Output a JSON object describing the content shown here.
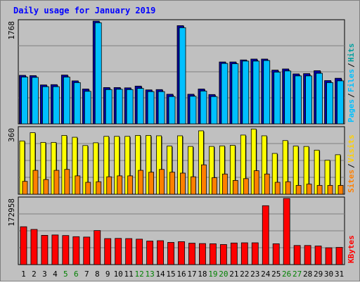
{
  "chart_data": {
    "type": "bar",
    "title": "Daily usage for January 2019",
    "categories": [
      "1",
      "2",
      "3",
      "4",
      "5",
      "6",
      "7",
      "8",
      "9",
      "10",
      "11",
      "12",
      "13",
      "14",
      "15",
      "16",
      "17",
      "18",
      "19",
      "20",
      "21",
      "22",
      "23",
      "24",
      "25",
      "26",
      "27",
      "28",
      "29",
      "30",
      "31"
    ],
    "weekend_days": [
      "5",
      "6",
      "12",
      "13",
      "19",
      "20",
      "26",
      "27"
    ],
    "panels": [
      {
        "name": "hits-files-pages",
        "ymax_label": "1768",
        "ymax": 1768,
        "legend": [
          "Pages",
          "Files",
          "Hits"
        ],
        "series": [
          {
            "name": "Hits",
            "color": "#0000a0",
            "values": [
              835,
              830,
              670,
              675,
              840,
              740,
              600,
              1768,
              625,
              625,
              620,
              650,
              585,
              590,
              510,
              1690,
              510,
              600,
              505,
              1065,
              1065,
              1100,
              1115,
              1115,
              925,
              945,
              860,
              865,
              915,
              745,
              785
            ]
          },
          {
            "name": "Files",
            "color": "#00c0ff",
            "values": [
              805,
              800,
              640,
              640,
              805,
              710,
              560,
              1740,
              590,
              595,
              590,
              610,
              555,
              555,
              470,
              1655,
              475,
              565,
              470,
              1040,
              1035,
              1080,
              1080,
              1090,
              890,
              910,
              825,
              825,
              870,
              710,
              740
            ]
          }
        ]
      },
      {
        "name": "visits-sites",
        "ymax_label": "360",
        "ymax": 360,
        "legend": [
          "Sites",
          "Visits"
        ],
        "series": [
          {
            "name": "Sites",
            "color": "#ffff00",
            "values": [
              290,
              335,
              282,
              282,
              320,
              310,
              265,
              280,
              315,
              315,
              315,
              320,
              320,
              318,
              262,
              318,
              260,
              345,
              260,
              263,
              266,
              322,
              355,
              318,
              222,
              292,
              262,
              260,
              240,
              185,
              215
            ]
          },
          {
            "name": "Visits",
            "color": "#ff8000",
            "values": [
              70,
              130,
              80,
              130,
              135,
              100,
              65,
              68,
              95,
              100,
              100,
              130,
              120,
              135,
              120,
              115,
              95,
              160,
              90,
              110,
              75,
              85,
              128,
              110,
              65,
              68,
              48,
              55,
              48,
              48,
              48
            ]
          }
        ]
      },
      {
        "name": "kbytes",
        "ymax_label": "172958",
        "ymax": 172958,
        "legend": [
          "KBytes"
        ],
        "series": [
          {
            "name": "KBytes",
            "color": "#ff0000",
            "values": [
              99000,
              92000,
              76500,
              77500,
              76000,
              73000,
              72000,
              89000,
              68000,
              68500,
              68000,
              66500,
              61500,
              62500,
              58000,
              60000,
              56000,
              55000,
              54500,
              52500,
              56500,
              57000,
              57000,
              154000,
              54500,
              172958,
              50000,
              50000,
              48500,
              44000,
              45000
            ]
          }
        ]
      }
    ]
  }
}
